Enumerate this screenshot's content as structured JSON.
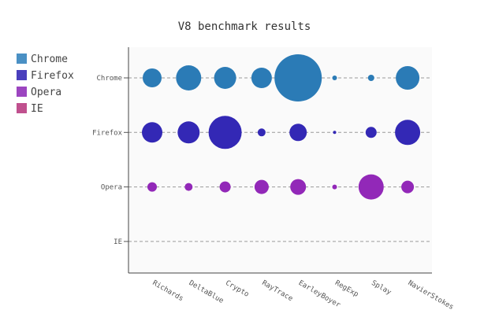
{
  "chart_data": {
    "type": "scatter",
    "title": "V8 benchmark results",
    "categories": [
      "Richards",
      "DeltaBlue",
      "Crypto",
      "RayTrace",
      "EarleyBoyer",
      "RegExp",
      "Splay",
      "NavierStokes"
    ],
    "rows": [
      "Chrome",
      "Firefox",
      "Opera",
      "IE"
    ],
    "grid": "dashed horizontal lines per row",
    "legend": "top-left",
    "series": [
      {
        "name": "Chrome",
        "color": "#2b7bb6",
        "legend_color": "#4a90c4",
        "sizes": [
          12,
          16,
          14,
          13,
          30,
          3,
          4,
          15
        ]
      },
      {
        "name": "Firefox",
        "color": "#3328b5",
        "legend_color": "#4a3fbd",
        "sizes": [
          13,
          14,
          21,
          5,
          11,
          2,
          7,
          16
        ]
      },
      {
        "name": "Opera",
        "color": "#9228b8",
        "legend_color": "#9c45c0",
        "sizes": [
          6,
          5,
          7,
          9,
          10,
          3,
          16,
          8
        ]
      },
      {
        "name": "IE",
        "color": "#b8286f",
        "legend_color": "#c0508e",
        "sizes": [
          0,
          0,
          0,
          0,
          0,
          0,
          0,
          0
        ]
      }
    ]
  }
}
